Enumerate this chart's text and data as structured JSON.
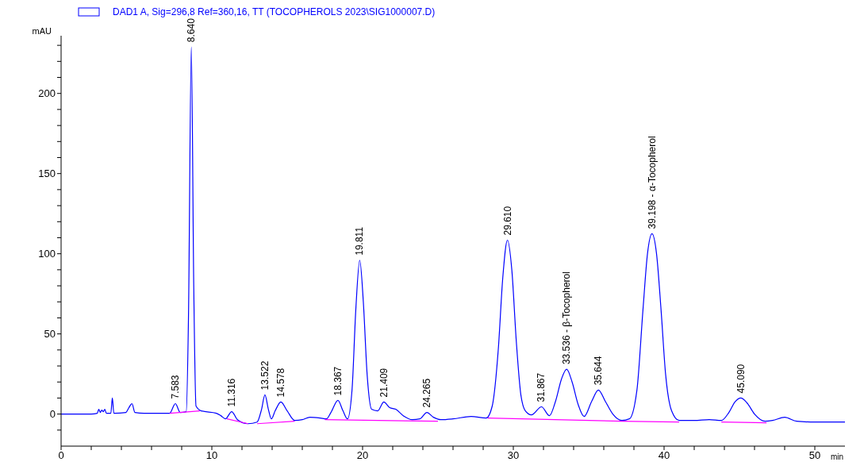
{
  "chart_data": {
    "type": "line",
    "xlabel": "min",
    "ylabel": "mAU",
    "legend": "top",
    "grid": false,
    "marker": "none",
    "line_style": "solid",
    "xlim": [
      0,
      52
    ],
    "ylim": [
      -20,
      236
    ],
    "xticks": [
      0,
      {
        "value": 2,
        "label": null
      },
      {
        "value": 4,
        "label": null
      },
      {
        "value": 6,
        "label": null
      },
      {
        "value": 8,
        "label": null
      },
      10,
      {
        "value": 12,
        "label": null
      },
      {
        "value": 14,
        "label": null
      },
      {
        "value": 16,
        "label": null
      },
      {
        "value": 18,
        "label": null
      },
      20,
      {
        "value": 22,
        "label": null
      },
      {
        "value": 24,
        "label": null
      },
      {
        "value": 26,
        "label": null
      },
      {
        "value": 28,
        "label": null
      },
      30,
      {
        "value": 32,
        "label": null
      },
      {
        "value": 34,
        "label": null
      },
      {
        "value": 36,
        "label": null
      },
      {
        "value": 38,
        "label": null
      },
      40,
      {
        "value": 42,
        "label": null
      },
      {
        "value": 44,
        "label": null
      },
      {
        "value": 46,
        "label": null
      },
      {
        "value": 48,
        "label": null
      },
      50
    ],
    "yticks": [
      {
        "value": -10,
        "label": null
      },
      0,
      {
        "value": 10,
        "label": null
      },
      {
        "value": 20,
        "label": null
      },
      {
        "value": 30,
        "label": null
      },
      {
        "value": 40,
        "label": null
      },
      50,
      {
        "value": 60,
        "label": null
      },
      {
        "value": 70,
        "label": null
      },
      {
        "value": 80,
        "label": null
      },
      {
        "value": 90,
        "label": null
      },
      100,
      {
        "value": 110,
        "label": null
      },
      {
        "value": 120,
        "label": null
      },
      {
        "value": 130,
        "label": null
      },
      {
        "value": 140,
        "label": null
      },
      150,
      {
        "value": 160,
        "label": null
      },
      {
        "value": 170,
        "label": null
      },
      {
        "value": 180,
        "label": null
      },
      {
        "value": 190,
        "label": null
      },
      200,
      {
        "value": 210,
        "label": null
      },
      {
        "value": 220,
        "label": null
      },
      {
        "value": 230,
        "label": null
      }
    ],
    "series": [
      {
        "name": "DAD1 A, Sig=296,8 Ref=360,16, TT (TOCOPHEROLS 2023\\SIG1000007.D)",
        "color": "#0000ff",
        "x": [
          0,
          2.0,
          2.4,
          2.5,
          2.6,
          2.7,
          2.8,
          2.9,
          3.0,
          3.3,
          3.4,
          3.5,
          4.3,
          4.5,
          4.7,
          4.9,
          5.5,
          7.2,
          7.583,
          7.9,
          8.3,
          8.45,
          8.64,
          8.8,
          8.95,
          9.3,
          10.3,
          10.6,
          10.9,
          11.316,
          11.7,
          12.4,
          13.0,
          13.3,
          13.522,
          13.75,
          13.95,
          14.2,
          14.578,
          15.0,
          15.5,
          16.0,
          16.5,
          17.2,
          17.6,
          17.9,
          18.367,
          18.7,
          19.0,
          19.3,
          19.55,
          19.811,
          20.05,
          20.3,
          20.6,
          21.0,
          21.409,
          21.8,
          22.2,
          22.7,
          23.3,
          23.8,
          24.265,
          24.7,
          25.2,
          26,
          27.2,
          28.2,
          28.6,
          29.0,
          29.3,
          29.61,
          29.9,
          30.2,
          30.5,
          30.8,
          31.2,
          31.867,
          32.4,
          32.8,
          33.2,
          33.536,
          33.9,
          34.3,
          34.7,
          35.2,
          35.644,
          36.1,
          36.6,
          37.2,
          37.7,
          38.2,
          38.6,
          38.9,
          39.198,
          39.5,
          39.8,
          40.1,
          40.5,
          41.0,
          42,
          43,
          43.8,
          44.3,
          44.7,
          45.09,
          45.5,
          46.0,
          46.7,
          47.2,
          48.0,
          48.8,
          50,
          52
        ],
        "values": [
          0,
          0,
          0.5,
          3,
          1,
          2.5,
          1.5,
          3,
          0.5,
          0.5,
          10,
          0.5,
          1,
          4,
          6.5,
          1,
          0.5,
          0.5,
          6.5,
          1,
          1.5,
          60,
          229,
          80,
          5,
          2,
          0.5,
          -1,
          -3,
          1.5,
          -3.5,
          -6,
          -5,
          3,
          12,
          3,
          -3,
          2,
          7.5,
          2,
          -4,
          -3.5,
          -2,
          -2.5,
          -3,
          1,
          8.5,
          2,
          -3,
          15,
          65,
          96,
          70,
          25,
          3,
          2,
          7.5,
          4,
          3,
          -1,
          -3.5,
          -3,
          1,
          -2,
          -3.5,
          -3,
          -1.5,
          -2.5,
          5,
          40,
          85,
          108.5,
          90,
          45,
          12,
          2,
          -0.5,
          4.5,
          -1,
          8,
          22,
          28,
          20,
          6,
          -1.5,
          8,
          15,
          8,
          0,
          -4,
          -3,
          15,
          65,
          100,
          112.5,
          100,
          65,
          25,
          2,
          -4,
          -4,
          -3.5,
          -4,
          1,
          7.5,
          10,
          7,
          0,
          -4.5,
          -4,
          -2,
          -4.5,
          -5,
          -5
        ]
      },
      {
        "color": "#ff00ff",
        "x": [
          7.2,
          9.2,
          10.1,
          11.0,
          12.4,
          12.9,
          13.0,
          15.5,
          16.5,
          17.5,
          25.0,
          26.5,
          28.3,
          37.2,
          41.0,
          43.0,
          43.8,
          46.8
        ],
        "values": [
          0.5,
          2,
          null,
          -3,
          -6,
          null,
          -6,
          -4.5,
          null,
          -3.5,
          -4.5,
          null,
          -2.5,
          -4.5,
          -5,
          null,
          -5,
          -5.5
        ]
      }
    ],
    "annotations": [
      {
        "text": "7.583",
        "x": 7.583,
        "y": 6.5
      },
      {
        "text": "8.640",
        "x": 8.64,
        "y": 229
      },
      {
        "text": "11.316",
        "x": 11.316,
        "y": 1.5
      },
      {
        "text": "13.522",
        "x": 13.522,
        "y": 12
      },
      {
        "text": "14.578",
        "x": 14.578,
        "y": 7.5
      },
      {
        "text": "18.367",
        "x": 18.367,
        "y": 8.5
      },
      {
        "text": "19.811",
        "x": 19.811,
        "y": 96
      },
      {
        "text": "21.409",
        "x": 21.409,
        "y": 7.5
      },
      {
        "text": "24.265",
        "x": 24.265,
        "y": 1
      },
      {
        "text": "29.610",
        "x": 29.61,
        "y": 108.5
      },
      {
        "text": "31.867",
        "x": 31.867,
        "y": 4.5
      },
      {
        "text": "33.536 -  β-Tocopherol",
        "x": 33.536,
        "y": 28
      },
      {
        "text": "35.644",
        "x": 35.644,
        "y": 15
      },
      {
        "text": "39.198 -  α-Tocopherol",
        "x": 39.198,
        "y": 112.5
      },
      {
        "text": "45.090",
        "x": 45.09,
        "y": 10
      }
    ]
  }
}
